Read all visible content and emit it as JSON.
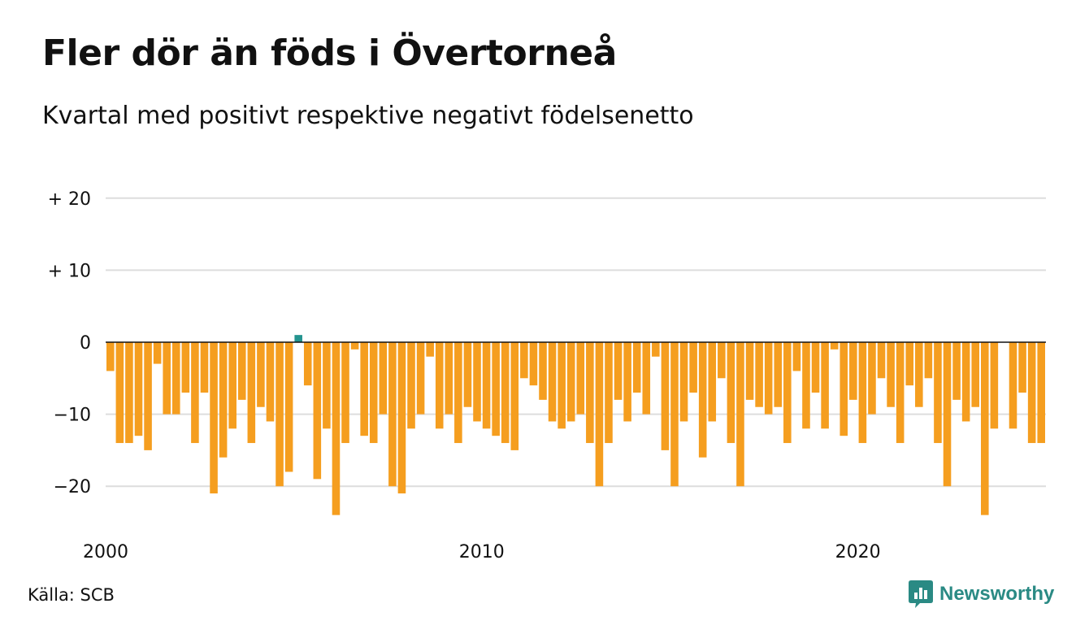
{
  "title": "Fler dör än föds i Övertorneå",
  "subtitle": "Kvartal med positivt respektive negativt födelsenetto",
  "source": "Källa: SCB",
  "brand": {
    "name": "Newsworthy",
    "icon": "bar-chart-logo-icon"
  },
  "colors": {
    "positive": "#23948f",
    "negative": "#f59e1f",
    "grid": "#dddddd",
    "axis": "#111111"
  },
  "chart_data": {
    "type": "bar",
    "ylim": [
      -25,
      22
    ],
    "y_ticks": [
      {
        "value": 20,
        "label": "+ 20"
      },
      {
        "value": 10,
        "label": "+ 10"
      },
      {
        "value": 0,
        "label": "0"
      },
      {
        "value": -10,
        "label": "−10"
      },
      {
        "value": -20,
        "label": "−20"
      }
    ],
    "x_start": 2000,
    "x_end": 2025,
    "x_ticks": [
      {
        "value": 2000,
        "label": "2000"
      },
      {
        "value": 2010,
        "label": "2010"
      },
      {
        "value": 2020,
        "label": "2020"
      }
    ],
    "grid": true,
    "categories": [
      "2000 K1",
      "2000 K2",
      "2000 K3",
      "2000 K4",
      "2001 K1",
      "2001 K2",
      "2001 K3",
      "2001 K4",
      "2002 K1",
      "2002 K2",
      "2002 K3",
      "2002 K4",
      "2003 K1",
      "2003 K2",
      "2003 K3",
      "2003 K4",
      "2004 K1",
      "2004 K2",
      "2004 K3",
      "2004 K4",
      "2005 K1",
      "2005 K2",
      "2005 K3",
      "2005 K4",
      "2006 K1",
      "2006 K2",
      "2006 K3",
      "2006 K4",
      "2007 K1",
      "2007 K2",
      "2007 K3",
      "2007 K4",
      "2008 K1",
      "2008 K2",
      "2008 K3",
      "2008 K4",
      "2009 K1",
      "2009 K2",
      "2009 K3",
      "2009 K4",
      "2010 K1",
      "2010 K2",
      "2010 K3",
      "2010 K4",
      "2011 K1",
      "2011 K2",
      "2011 K3",
      "2011 K4",
      "2012 K1",
      "2012 K2",
      "2012 K3",
      "2012 K4",
      "2013 K1",
      "2013 K2",
      "2013 K3",
      "2013 K4",
      "2014 K1",
      "2014 K2",
      "2014 K3",
      "2014 K4",
      "2015 K1",
      "2015 K2",
      "2015 K3",
      "2015 K4",
      "2016 K1",
      "2016 K2",
      "2016 K3",
      "2016 K4",
      "2017 K1",
      "2017 K2",
      "2017 K3",
      "2017 K4",
      "2018 K1",
      "2018 K2",
      "2018 K3",
      "2018 K4",
      "2019 K1",
      "2019 K2",
      "2019 K3",
      "2019 K4",
      "2020 K1",
      "2020 K2",
      "2020 K3",
      "2020 K4",
      "2021 K1",
      "2021 K2",
      "2021 K3",
      "2021 K4",
      "2022 K1",
      "2022 K2",
      "2022 K3",
      "2022 K4",
      "2023 K1",
      "2023 K2",
      "2023 K3",
      "2023 K4",
      "2024 K1",
      "2024 K2",
      "2024 K3",
      "2024 K4"
    ],
    "values": [
      -4,
      -14,
      -14,
      -13,
      -15,
      -3,
      -10,
      -10,
      -7,
      -14,
      -7,
      -21,
      -16,
      -12,
      -8,
      -14,
      -9,
      -11,
      -20,
      -18,
      1,
      -6,
      -19,
      -12,
      -24,
      -14,
      -1,
      -13,
      -14,
      -10,
      -20,
      -21,
      -12,
      -10,
      -2,
      -12,
      -10,
      -14,
      -9,
      -11,
      -12,
      -13,
      -14,
      -15,
      -5,
      -6,
      -8,
      -11,
      -12,
      -11,
      -10,
      -14,
      -20,
      -14,
      -8,
      -11,
      -7,
      -10,
      -2,
      -15,
      -20,
      -11,
      -7,
      -16,
      -11,
      -5,
      -14,
      -20,
      -8,
      -9,
      -10,
      -9,
      -14,
      -4,
      -12,
      -7,
      -12,
      -1,
      -13,
      -8,
      -14,
      -10,
      -5,
      -9,
      -14,
      -6,
      -9,
      -5,
      -14,
      -20,
      -8,
      -11,
      -9,
      -24,
      -12,
      0,
      -12,
      -7,
      -14,
      -14
    ]
  }
}
